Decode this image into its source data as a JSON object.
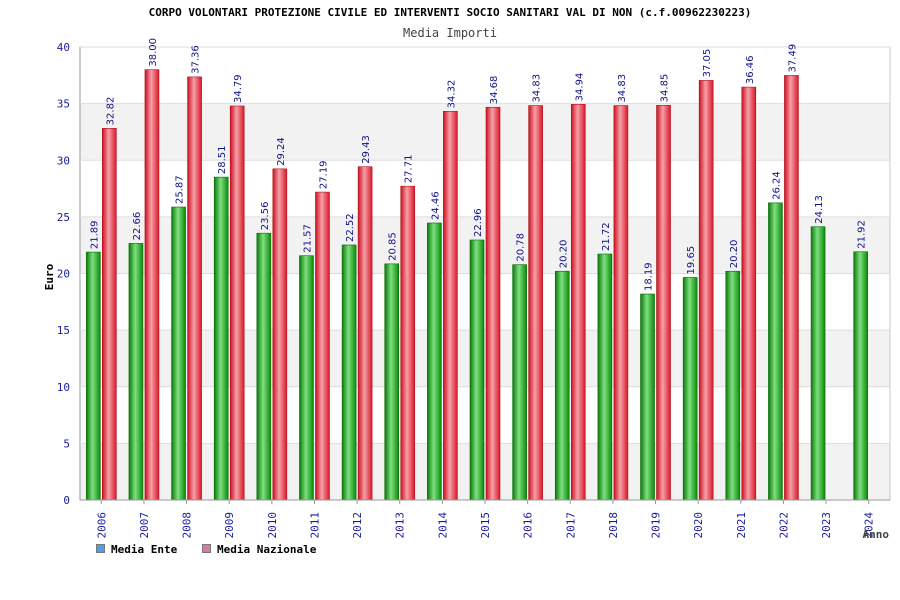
{
  "chart_data": {
    "type": "bar",
    "title": "CORPO VOLONTARI PROTEZIONE CIVILE ED INTERVENTI SOCIO SANITARI VAL DI NON (c.f.00962230223)",
    "subtitle": "Media Importi",
    "xlabel": "Anno",
    "ylabel": "Euro",
    "ylim": [
      0,
      40
    ],
    "yticks": [
      0,
      5,
      10,
      15,
      20,
      25,
      30,
      35,
      40
    ],
    "categories": [
      "2006",
      "2007",
      "2008",
      "2009",
      "2010",
      "2011",
      "2012",
      "2013",
      "2014",
      "2015",
      "2016",
      "2017",
      "2018",
      "2019",
      "2020",
      "2021",
      "2022",
      "2023",
      "2024"
    ],
    "series": [
      {
        "name": "Media Ente",
        "color": "#22aa22",
        "values": [
          21.89,
          22.66,
          25.87,
          28.51,
          23.56,
          21.57,
          22.52,
          20.85,
          24.46,
          22.96,
          20.78,
          20.2,
          21.72,
          18.19,
          19.65,
          20.2,
          26.24,
          24.13,
          21.92
        ],
        "labels": [
          "21.89",
          "22.66",
          "25.87",
          "28.51",
          "23.56",
          "21.57",
          "22.52",
          "20.85",
          "24.46",
          "22.96",
          "20.78",
          "20.20",
          "21.72",
          "18.19",
          "19.65",
          "20.20",
          "26.24",
          "24.13",
          "21.92"
        ]
      },
      {
        "name": "Media Nazionale",
        "color": "#ee2233",
        "values": [
          32.82,
          38.0,
          37.36,
          34.79,
          29.24,
          27.19,
          29.43,
          27.71,
          34.32,
          34.68,
          34.83,
          34.94,
          34.83,
          34.85,
          37.05,
          36.46,
          37.49,
          null,
          null
        ],
        "labels": [
          "32.82",
          "38.00",
          "37.36",
          "34.79",
          "29.24",
          "27.19",
          "29.43",
          "27.71",
          "34.32",
          "34.68",
          "34.83",
          "34.94",
          "34.83",
          "34.85",
          "37.05",
          "36.46",
          "37.49",
          "",
          ""
        ]
      }
    ],
    "legend": [
      {
        "label": "Media Ente",
        "color": "#5599ee"
      },
      {
        "label": "Media Nazionale",
        "color": "#dd77aa"
      }
    ],
    "legend_position": "bottom-left"
  }
}
